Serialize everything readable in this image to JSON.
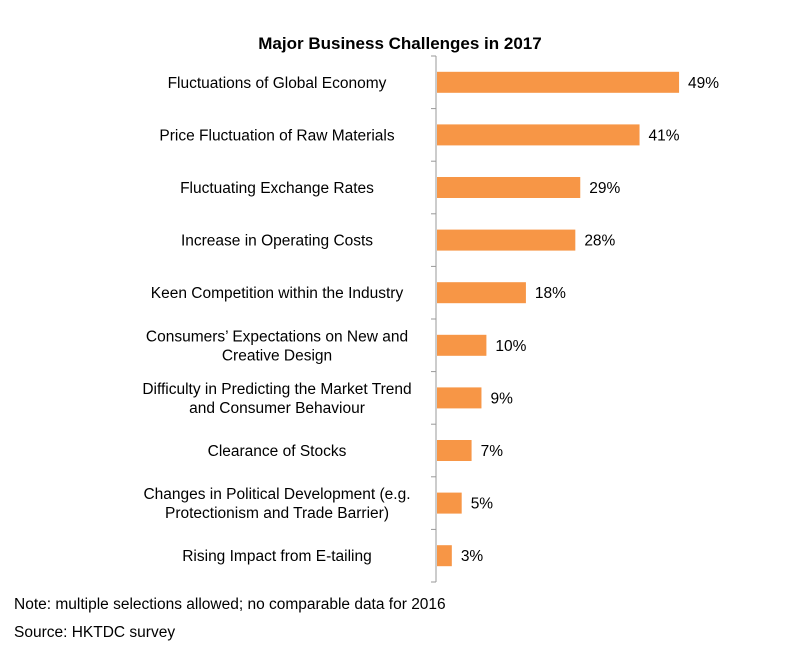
{
  "chart_data": {
    "type": "bar",
    "orientation": "horizontal",
    "title": "Major Business Challenges in 2017",
    "categories": [
      [
        "Fluctuations of Global Economy"
      ],
      [
        "Price Fluctuation of Raw Materials"
      ],
      [
        "Fluctuating Exchange Rates"
      ],
      [
        "Increase in Operating Costs"
      ],
      [
        "Keen Competition within the Industry"
      ],
      [
        "Consumers’ Expectations on New and",
        "Creative Design"
      ],
      [
        "Difficulty in Predicting the Market Trend",
        "and Consumer Behaviour"
      ],
      [
        "Clearance of Stocks"
      ],
      [
        "Changes in Political Development (e.g.",
        "Protectionism and Trade Barrier)"
      ],
      [
        "Rising Impact from E-tailing"
      ]
    ],
    "values": [
      49,
      41,
      29,
      28,
      18,
      10,
      9,
      7,
      5,
      3
    ],
    "value_suffix": "%",
    "bar_color": "#F79646",
    "axis_color": "#999999",
    "grid": false,
    "legend": "none"
  },
  "notes": {
    "note": "Note: multiple selections allowed; no comparable data for 2016",
    "source": "Source: HKTDC survey"
  }
}
